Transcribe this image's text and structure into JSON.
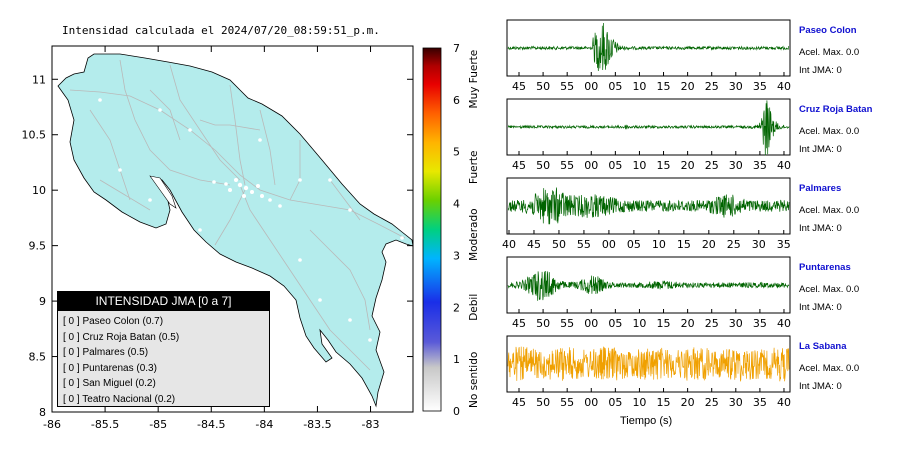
{
  "map": {
    "title": "Intensidad calculada el 2024/07/20_08:59:51_p.m.",
    "x_ticks": [
      "-86",
      "-85.5",
      "-85",
      "-84.5",
      "-84",
      "-83.5",
      "-83"
    ],
    "y_ticks": [
      "11",
      "10.5",
      "10",
      "9.5",
      "9",
      "8.5",
      "8"
    ],
    "colors": {
      "land": "#b4ecec",
      "sea": "#ffffff",
      "roads": "#b9b9b9",
      "stations": "#ffffff"
    }
  },
  "legend": {
    "title": "INTENSIDAD JMA [0 a 7]",
    "items": [
      "[ 0 ]  Paseo Colon (0.7)",
      "[ 0 ]  Cruz Roja Batan (0.5)",
      "[ 0 ]  Palmares (0.5)",
      "[ 0 ]  Puntarenas (0.3)",
      "[ 0 ]  San Miguel (0.2)",
      "[ 0 ]  Teatro Nacional (0.2)"
    ]
  },
  "colorbar": {
    "ticks": [
      "7",
      "6",
      "5",
      "4",
      "3",
      "2",
      "1",
      "0"
    ],
    "labels": [
      "Muy Fuerte",
      "Fuerte",
      "Moderado",
      "Debil",
      "No sentido"
    ]
  },
  "waveforms": {
    "xlabel": "Tiempo (s)",
    "stations": [
      {
        "name": "Paseo Colon",
        "acel": "Acel. Max. 0.0",
        "jma": "Int JMA: 0",
        "color": "#006400",
        "ticks": [
          "45",
          "50",
          "55",
          "00",
          "05",
          "10",
          "15",
          "20",
          "25",
          "30",
          "35",
          "40"
        ]
      },
      {
        "name": "Cruz Roja Batan",
        "acel": "Acel. Max. 0.0",
        "jma": "Int JMA: 0",
        "color": "#006400",
        "ticks": [
          "45",
          "50",
          "55",
          "00",
          "05",
          "10",
          "15",
          "20",
          "25",
          "30",
          "35",
          "40"
        ]
      },
      {
        "name": "Palmares",
        "acel": "Acel. Max. 0.0",
        "jma": "Int JMA: 0",
        "color": "#006400",
        "ticks": [
          "40",
          "45",
          "50",
          "55",
          "00",
          "05",
          "10",
          "15",
          "20",
          "25",
          "30",
          "35"
        ]
      },
      {
        "name": "Puntarenas",
        "acel": "Acel. Max. 0.0",
        "jma": "Int JMA: 0",
        "color": "#006400",
        "ticks": [
          "45",
          "50",
          "55",
          "00",
          "05",
          "10",
          "15",
          "20",
          "25",
          "30",
          "35",
          "40"
        ]
      },
      {
        "name": "La Sabana",
        "acel": "Acel. Max. 0.0",
        "jma": "Int JMA: 0",
        "color": "#f0a000",
        "ticks": [
          "45",
          "50",
          "55",
          "00",
          "05",
          "10",
          "15",
          "20",
          "25",
          "30",
          "35",
          "40"
        ]
      }
    ]
  },
  "chart_data": [
    {
      "type": "map",
      "title": "Intensidad calculada el 2024/07/20_08:59:51_p.m.",
      "xlim": [
        -86,
        -82.6
      ],
      "ylim": [
        8,
        11.3
      ],
      "stations_intensity": [
        {
          "name": "Paseo Colon",
          "jma": 0,
          "value": 0.7
        },
        {
          "name": "Cruz Roja Batan",
          "jma": 0,
          "value": 0.5
        },
        {
          "name": "Palmares",
          "jma": 0,
          "value": 0.5
        },
        {
          "name": "Puntarenas",
          "jma": 0,
          "value": 0.3
        },
        {
          "name": "San Miguel",
          "jma": 0,
          "value": 0.2
        },
        {
          "name": "Teatro Nacional",
          "jma": 0,
          "value": 0.2
        }
      ]
    },
    {
      "type": "line",
      "xlabel": "Tiempo (s)",
      "series": [
        {
          "name": "Paseo Colon",
          "acel_max": 0.0,
          "int_jma": 0
        },
        {
          "name": "Cruz Roja Batan",
          "acel_max": 0.0,
          "int_jma": 0
        },
        {
          "name": "Palmares",
          "acel_max": 0.0,
          "int_jma": 0
        },
        {
          "name": "Puntarenas",
          "acel_max": 0.0,
          "int_jma": 0
        },
        {
          "name": "La Sabana",
          "acel_max": 0.0,
          "int_jma": 0
        }
      ]
    }
  ]
}
